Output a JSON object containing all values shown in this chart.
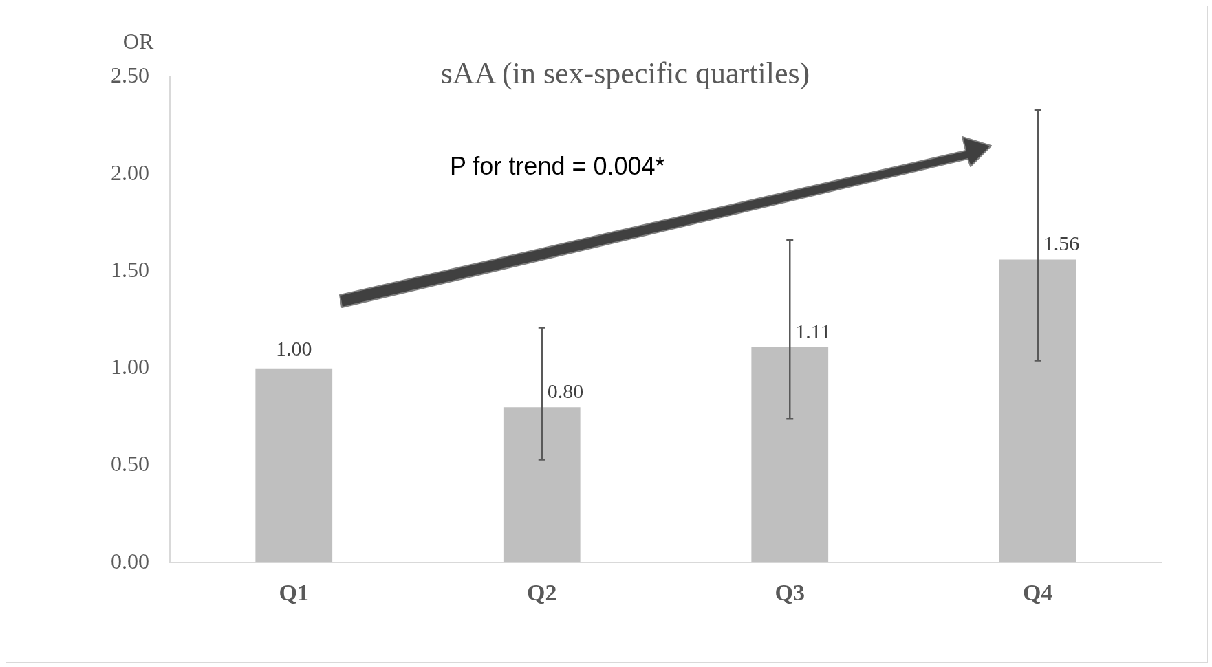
{
  "chart_data": {
    "type": "bar",
    "title": "sAA (in sex-specific quartiles)",
    "ylabel": "OR",
    "categories": [
      "Q1",
      "Q2",
      "Q3",
      "Q4"
    ],
    "values": [
      1.0,
      0.8,
      1.11,
      1.56
    ],
    "errors": [
      null,
      [
        0.53,
        1.21
      ],
      [
        0.74,
        1.66
      ],
      [
        1.04,
        2.33
      ]
    ],
    "color": "#bfbfbf",
    "value_labels": [
      "1.00",
      "0.80",
      "1.11",
      "1.56"
    ],
    "ylim": [
      0,
      2.5
    ],
    "yticks": [
      {
        "value": 0,
        "label": "0.00"
      },
      {
        "value": 0.5,
        "label": "0.50"
      },
      {
        "value": 1,
        "label": "1.00"
      },
      {
        "value": 1.5,
        "label": "1.50"
      },
      {
        "value": 2,
        "label": "2.00"
      },
      {
        "value": 2.5,
        "label": "2.50"
      }
    ],
    "grid": false,
    "legend": false,
    "annotations": [
      "P for trend = 0.004*"
    ]
  }
}
